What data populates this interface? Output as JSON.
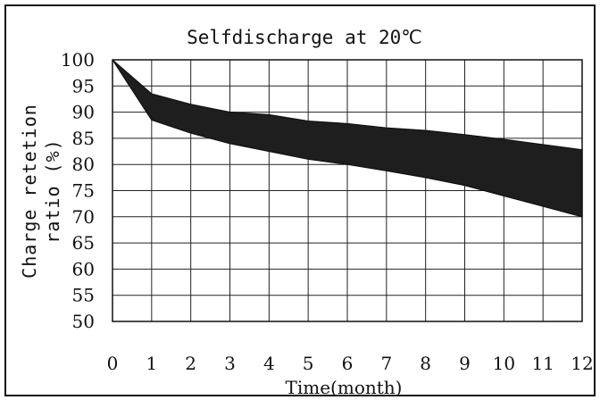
{
  "chart_data": {
    "type": "area",
    "title": "Selfdischarge at 20℃",
    "xlabel": "Time(month)",
    "ylabel_lines": [
      "Charge retetion",
      "ratio (%)"
    ],
    "x": [
      0,
      1,
      2,
      3,
      4,
      5,
      6,
      7,
      8,
      9,
      10,
      11,
      12
    ],
    "xlim": [
      0,
      12
    ],
    "ylim": [
      50,
      100
    ],
    "y_ticks": [
      50,
      55,
      60,
      65,
      70,
      75,
      80,
      85,
      90,
      95,
      100
    ],
    "x_ticks": [
      "0",
      "1",
      "2",
      "3",
      "4",
      "5",
      "6",
      "7",
      "8",
      "9",
      "10",
      "11",
      "12"
    ],
    "grid": true,
    "band": {
      "upper": [
        100,
        93.5,
        91.5,
        90,
        89.5,
        88.3,
        87.8,
        87,
        86.5,
        85.7,
        84.8,
        83.8,
        82.8
      ],
      "lower": [
        100,
        88.5,
        86,
        84,
        82.5,
        81,
        80,
        78.8,
        77.5,
        76,
        74,
        72,
        70
      ],
      "fill": "#1e1e1e"
    }
  }
}
